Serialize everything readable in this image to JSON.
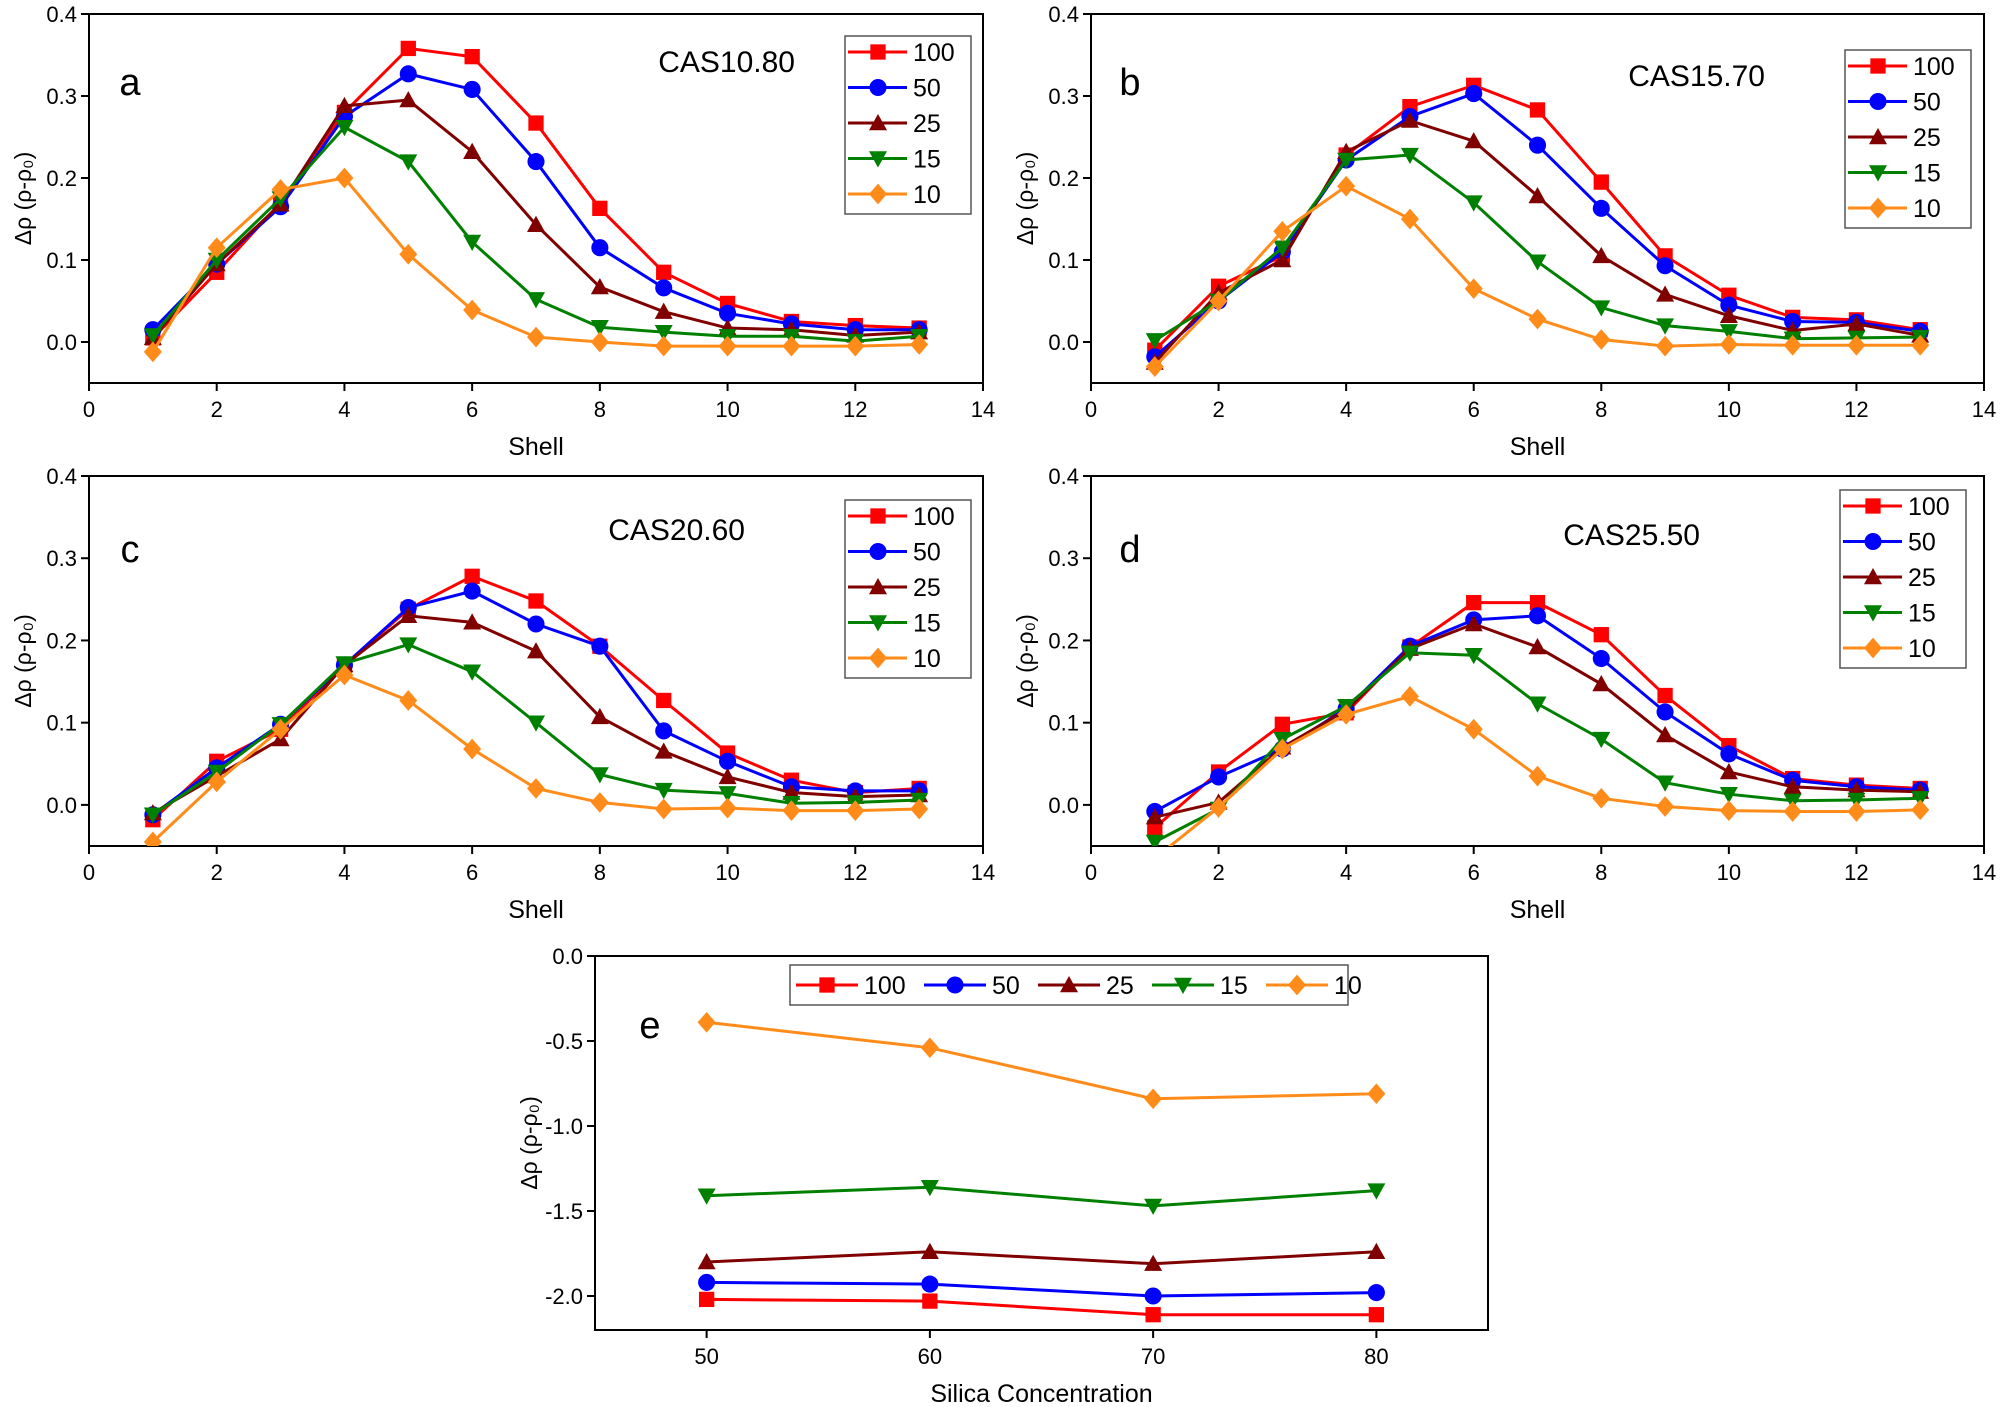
{
  "series_colors": {
    "100": "#ff0000",
    "50": "#0000ff",
    "25": "#800000",
    "15": "#008000",
    "10": "#ff8c1a"
  },
  "series_markers": {
    "100": "square",
    "50": "circle",
    "25": "triangle-up",
    "15": "triangle-down",
    "10": "diamond"
  },
  "chart_data": [
    {
      "type": "line",
      "panel_letter": "a",
      "title": "CAS10.80",
      "xlabel": "Shell",
      "ylabel": "Δρ (ρ-ρ₀)",
      "xlim": [
        0,
        14
      ],
      "ylim": [
        -0.05,
        0.4
      ],
      "xticks": [
        0,
        2,
        4,
        6,
        8,
        10,
        12,
        14
      ],
      "yticks": [
        0.0,
        0.1,
        0.2,
        0.3,
        0.4
      ],
      "ytick_labels": [
        "0.0",
        "0.1",
        "0.2",
        "0.3",
        "0.4"
      ],
      "legend": "top-right",
      "x": [
        1,
        2,
        3,
        4,
        5,
        6,
        7,
        8,
        9,
        10,
        11,
        12,
        13
      ],
      "series": [
        {
          "name": "100",
          "values": [
            0.005,
            0.085,
            0.17,
            0.28,
            0.358,
            0.348,
            0.267,
            0.163,
            0.085,
            0.047,
            0.025,
            0.02,
            0.017
          ]
        },
        {
          "name": "50",
          "values": [
            0.015,
            0.095,
            0.165,
            0.275,
            0.327,
            0.308,
            0.22,
            0.115,
            0.066,
            0.035,
            0.022,
            0.015,
            0.015
          ]
        },
        {
          "name": "25",
          "values": [
            0.005,
            0.095,
            0.168,
            0.288,
            0.295,
            0.232,
            0.143,
            0.067,
            0.037,
            0.017,
            0.015,
            0.008,
            0.012
          ]
        },
        {
          "name": "15",
          "values": [
            0.008,
            0.1,
            0.175,
            0.262,
            0.22,
            0.122,
            0.052,
            0.018,
            0.012,
            0.007,
            0.007,
            0.001,
            0.007
          ]
        },
        {
          "name": "10",
          "values": [
            -0.012,
            0.115,
            0.186,
            0.2,
            0.107,
            0.039,
            0.006,
            0.0,
            -0.005,
            -0.005,
            -0.005,
            -0.005,
            -0.003
          ]
        }
      ]
    },
    {
      "type": "line",
      "panel_letter": "b",
      "title": "CAS15.70",
      "xlabel": "Shell",
      "ylabel": "Δρ (ρ-ρ₀)",
      "xlim": [
        0,
        14
      ],
      "ylim": [
        -0.05,
        0.4
      ],
      "xticks": [
        0,
        2,
        4,
        6,
        8,
        10,
        12,
        14
      ],
      "yticks": [
        0.0,
        0.1,
        0.2,
        0.3,
        0.4
      ],
      "ytick_labels": [
        "0.0",
        "0.1",
        "0.2",
        "0.3",
        "0.4"
      ],
      "legend": "top-right",
      "x": [
        1,
        2,
        3,
        4,
        5,
        6,
        7,
        8,
        9,
        10,
        11,
        12,
        13
      ],
      "series": [
        {
          "name": "100",
          "values": [
            -0.01,
            0.068,
            0.105,
            0.228,
            0.287,
            0.313,
            0.283,
            0.195,
            0.105,
            0.057,
            0.03,
            0.027,
            0.015
          ]
        },
        {
          "name": "50",
          "values": [
            -0.018,
            0.05,
            0.11,
            0.222,
            0.275,
            0.303,
            0.24,
            0.163,
            0.093,
            0.045,
            0.025,
            0.024,
            0.013
          ]
        },
        {
          "name": "25",
          "values": [
            -0.025,
            0.06,
            0.1,
            0.232,
            0.27,
            0.245,
            0.178,
            0.105,
            0.058,
            0.032,
            0.014,
            0.022,
            0.008
          ]
        },
        {
          "name": "15",
          "values": [
            0.002,
            0.05,
            0.115,
            0.222,
            0.228,
            0.17,
            0.098,
            0.042,
            0.02,
            0.013,
            0.004,
            0.005,
            0.006
          ]
        },
        {
          "name": "10",
          "values": [
            -0.03,
            0.05,
            0.135,
            0.19,
            0.15,
            0.065,
            0.028,
            0.003,
            -0.005,
            -0.003,
            -0.004,
            -0.004,
            -0.004
          ]
        }
      ]
    },
    {
      "type": "line",
      "panel_letter": "c",
      "title": "CAS20.60",
      "xlabel": "Shell",
      "ylabel": "Δρ (ρ-ρ₀)",
      "xlim": [
        0,
        14
      ],
      "ylim": [
        -0.05,
        0.4
      ],
      "xticks": [
        0,
        2,
        4,
        6,
        8,
        10,
        12,
        14
      ],
      "yticks": [
        0.0,
        0.1,
        0.2,
        0.3,
        0.4
      ],
      "ytick_labels": [
        "0.0",
        "0.1",
        "0.2",
        "0.3",
        "0.4"
      ],
      "legend": "top-right",
      "x": [
        1,
        2,
        3,
        4,
        5,
        6,
        7,
        8,
        9,
        10,
        11,
        12,
        13
      ],
      "series": [
        {
          "name": "100",
          "values": [
            -0.018,
            0.053,
            0.092,
            0.17,
            0.238,
            0.278,
            0.248,
            0.193,
            0.127,
            0.063,
            0.03,
            0.015,
            0.02
          ]
        },
        {
          "name": "50",
          "values": [
            -0.012,
            0.045,
            0.098,
            0.17,
            0.24,
            0.26,
            0.22,
            0.193,
            0.09,
            0.053,
            0.022,
            0.017,
            0.017
          ]
        },
        {
          "name": "25",
          "values": [
            -0.01,
            0.035,
            0.08,
            0.17,
            0.23,
            0.222,
            0.187,
            0.107,
            0.065,
            0.034,
            0.015,
            0.01,
            0.012
          ]
        },
        {
          "name": "15",
          "values": [
            -0.012,
            0.04,
            0.098,
            0.172,
            0.195,
            0.162,
            0.1,
            0.037,
            0.018,
            0.014,
            0.002,
            0.003,
            0.006
          ]
        },
        {
          "name": "10",
          "values": [
            -0.045,
            0.028,
            0.092,
            0.158,
            0.127,
            0.068,
            0.02,
            0.003,
            -0.005,
            -0.004,
            -0.007,
            -0.007,
            -0.005
          ]
        }
      ]
    },
    {
      "type": "line",
      "panel_letter": "d",
      "title": "CAS25.50",
      "xlabel": "Shell",
      "ylabel": "Δρ (ρ-ρ₀)",
      "xlim": [
        0,
        14
      ],
      "ylim": [
        -0.05,
        0.4
      ],
      "xticks": [
        0,
        2,
        4,
        6,
        8,
        10,
        12,
        14
      ],
      "yticks": [
        0.0,
        0.1,
        0.2,
        0.3,
        0.4
      ],
      "ytick_labels": [
        "0.0",
        "0.1",
        "0.2",
        "0.3",
        "0.4"
      ],
      "legend": "top-right",
      "x": [
        1,
        2,
        3,
        4,
        5,
        6,
        7,
        8,
        9,
        10,
        11,
        12,
        13
      ],
      "series": [
        {
          "name": "100",
          "values": [
            -0.028,
            0.04,
            0.098,
            0.112,
            0.192,
            0.246,
            0.246,
            0.207,
            0.133,
            0.072,
            0.032,
            0.024,
            0.02
          ]
        },
        {
          "name": "50",
          "values": [
            -0.008,
            0.034,
            0.068,
            0.117,
            0.193,
            0.225,
            0.23,
            0.178,
            0.113,
            0.062,
            0.03,
            0.022,
            0.018
          ]
        },
        {
          "name": "25",
          "values": [
            -0.015,
            0.003,
            0.07,
            0.115,
            0.19,
            0.22,
            0.192,
            0.147,
            0.085,
            0.04,
            0.022,
            0.018,
            0.016
          ]
        },
        {
          "name": "15",
          "values": [
            -0.045,
            -0.005,
            0.08,
            0.12,
            0.185,
            0.182,
            0.123,
            0.08,
            0.027,
            0.013,
            0.005,
            0.006,
            0.008
          ]
        },
        {
          "name": "10",
          "values": [
            -0.065,
            -0.003,
            0.068,
            0.11,
            0.132,
            0.092,
            0.035,
            0.008,
            -0.002,
            -0.007,
            -0.008,
            -0.008,
            -0.006
          ]
        }
      ]
    },
    {
      "type": "line",
      "panel_letter": "e",
      "title": "",
      "xlabel": "Silica Concentration",
      "ylabel": "Δρ (ρ-ρ₀)",
      "xlim": [
        45,
        85
      ],
      "ylim": [
        -2.2,
        0.0
      ],
      "xticks": [
        50,
        60,
        70,
        80
      ],
      "yticks": [
        -2.0,
        -1.5,
        -1.0,
        -0.5,
        0.0
      ],
      "ytick_labels": [
        "-2.0",
        "-1.5",
        "-1.0",
        "-0.5",
        "0.0"
      ],
      "legend": "top",
      "x": [
        50,
        60,
        70,
        80
      ],
      "series": [
        {
          "name": "100",
          "values": [
            -2.02,
            -2.03,
            -2.11,
            -2.11
          ]
        },
        {
          "name": "50",
          "values": [
            -1.92,
            -1.93,
            -2.0,
            -1.98
          ]
        },
        {
          "name": "25",
          "values": [
            -1.8,
            -1.74,
            -1.81,
            -1.74
          ]
        },
        {
          "name": "15",
          "values": [
            -1.41,
            -1.36,
            -1.47,
            -1.38
          ]
        },
        {
          "name": "10",
          "values": [
            -0.39,
            -0.54,
            -0.84,
            -0.81
          ]
        }
      ]
    }
  ]
}
